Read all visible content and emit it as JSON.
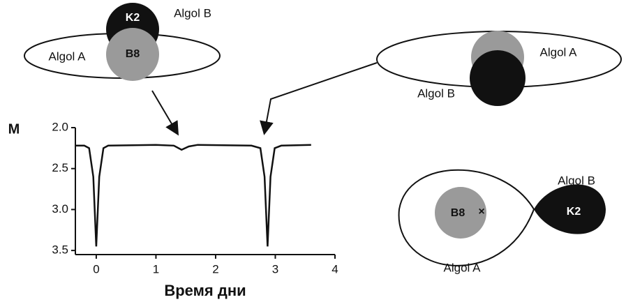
{
  "eclipse_primary": {
    "star_a": "Algol A",
    "star_b": "Algol B",
    "label_a": "B8",
    "label_b": "K2"
  },
  "eclipse_secondary": {
    "star_a": "Algol A",
    "star_b": "Algol B"
  },
  "roche": {
    "star_a": "Algol A",
    "star_b": "Algol B",
    "label_a": "B8",
    "label_b": "K2",
    "marker": "×"
  },
  "chart_data": {
    "type": "line",
    "y_label": "M",
    "x_label": "Время дни",
    "color": "#111111",
    "x": [
      -0.35,
      -0.2,
      -0.12,
      -0.05,
      0,
      0.05,
      0.12,
      0.2,
      1.0,
      1.3,
      1.43,
      1.55,
      1.7,
      2.6,
      2.75,
      2.82,
      2.87,
      2.92,
      2.99,
      3.1,
      3.6
    ],
    "values": [
      2.22,
      2.22,
      2.25,
      2.6,
      3.45,
      2.6,
      2.25,
      2.22,
      2.21,
      2.22,
      2.27,
      2.23,
      2.21,
      2.22,
      2.25,
      2.6,
      3.45,
      2.6,
      2.25,
      2.22,
      2.21
    ],
    "xlim": [
      -0.35,
      4
    ],
    "ylim": [
      3.55,
      2.0
    ],
    "xticks": [
      0,
      1,
      2,
      3,
      4
    ],
    "yticks": [
      {
        "value": 2,
        "label": "2.0"
      },
      {
        "value": 2.5,
        "label": "2.5"
      },
      {
        "value": 3,
        "label": "3.0"
      },
      {
        "value": 3.5,
        "label": "3.5"
      }
    ]
  }
}
